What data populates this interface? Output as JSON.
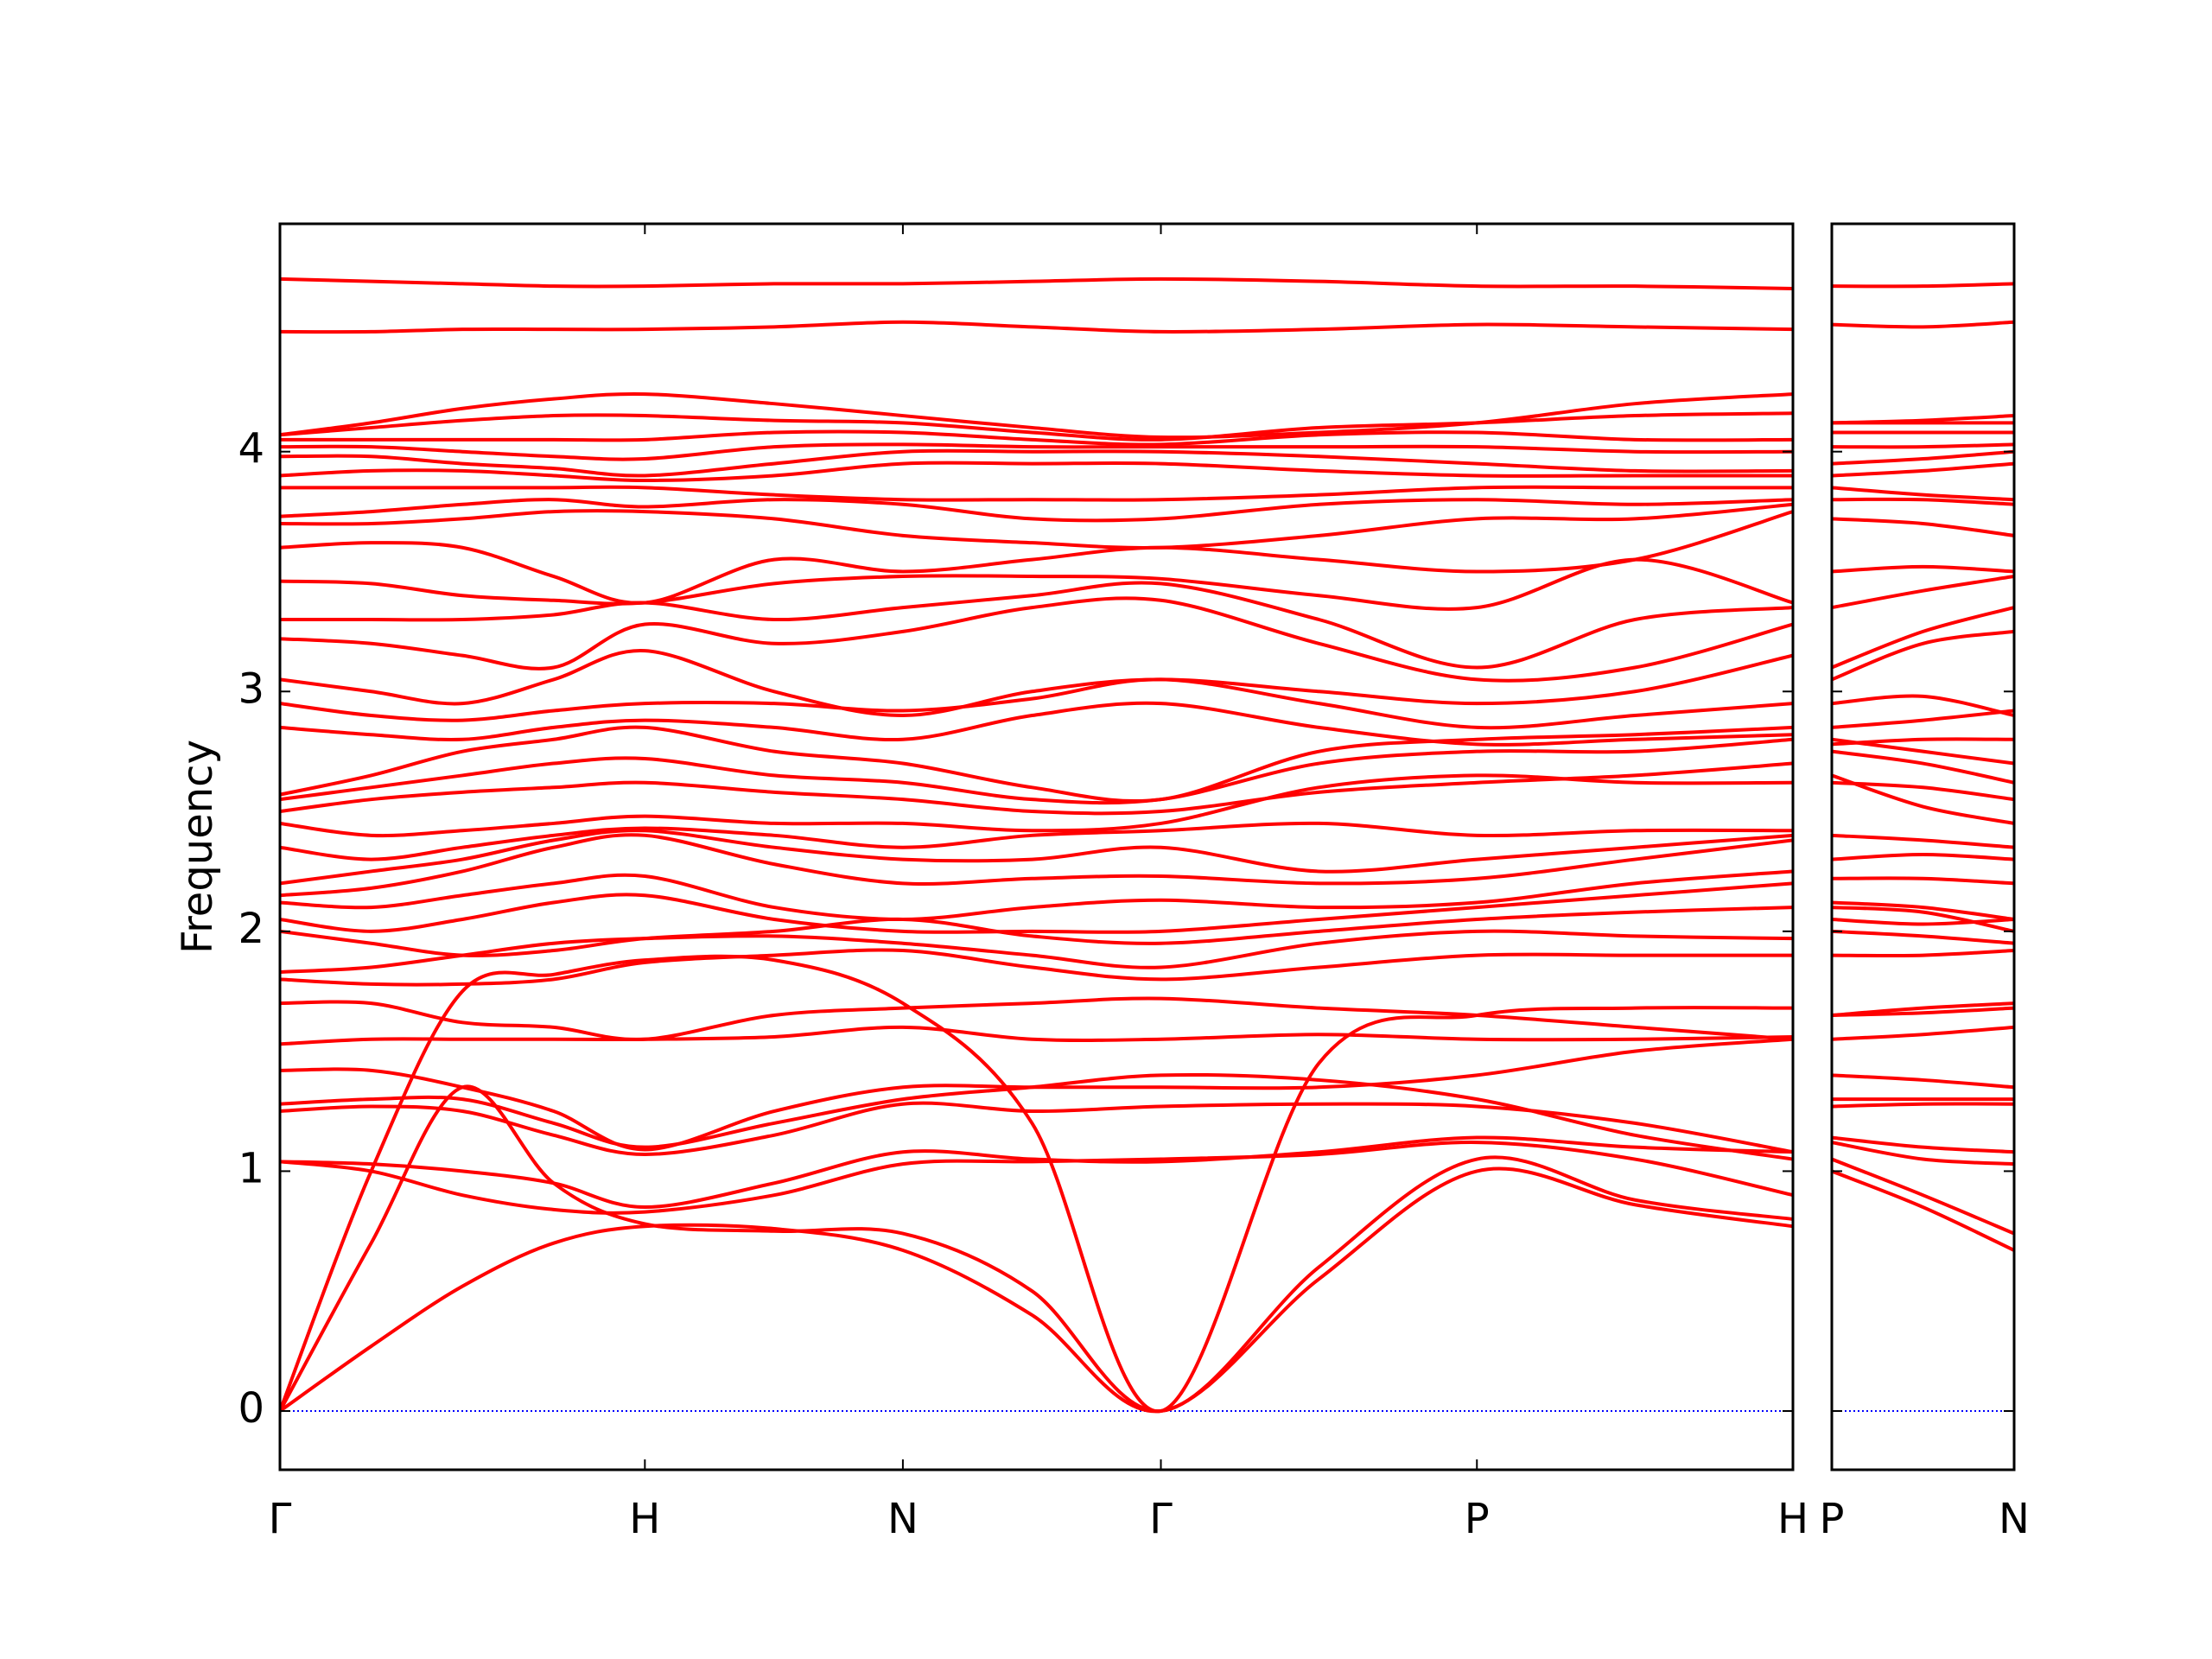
{
  "chart_data": [
    {
      "type": "line",
      "ylabel": "Frequency",
      "color": "#ff0000",
      "ylim": [
        -0.245,
        4.95
      ],
      "yticks": [
        0,
        1,
        2,
        3,
        4
      ],
      "xlim": [
        0,
        4.146
      ],
      "xticks": [
        {
          "value": 0,
          "label": "Γ"
        },
        {
          "value": 1,
          "label": "H"
        },
        {
          "value": 1.707,
          "label": "N"
        },
        {
          "value": 2.414,
          "label": "Γ"
        },
        {
          "value": 3.28,
          "label": "P"
        },
        {
          "value": 4.146,
          "label": "H"
        }
      ],
      "hlines": [
        0
      ],
      "hline_color": "#0000ff",
      "x": [
        0,
        0.25,
        0.5,
        0.75,
        1,
        1.354,
        1.707,
        2.061,
        2.414,
        2.847,
        3.28,
        3.713,
        4.146
      ],
      "series": [
        {
          "values": [
            0,
            0.27,
            0.52,
            0.7,
            0.77,
            0.76,
            0.67,
            0.4,
            0,
            0.55,
            1.0,
            0.86,
            0.77
          ]
        },
        {
          "values": [
            0,
            0.7,
            1.35,
            0.95,
            0.78,
            0.75,
            0.74,
            0.5,
            0,
            0.6,
            1.05,
            0.88,
            0.8
          ]
        },
        {
          "values": [
            0,
            1.0,
            1.75,
            1.82,
            1.88,
            1.88,
            1.7,
            1.2,
            0,
            1.45,
            1.65,
            1.68,
            1.68
          ]
        },
        {
          "values": [
            1.04,
            1.0,
            0.9,
            0.84,
            0.83,
            0.9,
            1.03,
            1.04,
            1.05,
            1.07,
            1.12,
            1.05,
            0.9
          ]
        },
        {
          "values": [
            1.04,
            1.03,
            1.0,
            0.95,
            0.85,
            0.95,
            1.08,
            1.05,
            1.04,
            1.08,
            1.14,
            1.1,
            1.08
          ]
        },
        {
          "values": [
            1.25,
            1.27,
            1.25,
            1.15,
            1.07,
            1.15,
            1.28,
            1.25,
            1.27,
            1.28,
            1.27,
            1.2,
            1.08
          ]
        },
        {
          "values": [
            1.28,
            1.3,
            1.3,
            1.2,
            1.1,
            1.2,
            1.3,
            1.35,
            1.4,
            1.38,
            1.3,
            1.15,
            1.05
          ]
        },
        {
          "values": [
            1.42,
            1.42,
            1.35,
            1.25,
            1.09,
            1.25,
            1.35,
            1.35,
            1.35,
            1.35,
            1.4,
            1.5,
            1.55
          ]
        },
        {
          "values": [
            1.53,
            1.55,
            1.55,
            1.55,
            1.55,
            1.56,
            1.6,
            1.55,
            1.55,
            1.57,
            1.55,
            1.55,
            1.56
          ]
        },
        {
          "values": [
            1.7,
            1.7,
            1.62,
            1.6,
            1.55,
            1.65,
            1.68,
            1.7,
            1.72,
            1.68,
            1.65,
            1.6,
            1.55
          ]
        },
        {
          "values": [
            1.8,
            1.78,
            1.78,
            1.8,
            1.87,
            1.9,
            1.92,
            1.85,
            1.8,
            1.85,
            1.9,
            1.9,
            1.9
          ]
        },
        {
          "values": [
            1.83,
            1.85,
            1.9,
            1.95,
            1.97,
            1.98,
            1.95,
            1.9,
            1.85,
            1.95,
            2.0,
            1.98,
            1.97
          ]
        },
        {
          "values": [
            2.0,
            1.95,
            1.9,
            1.92,
            1.97,
            2.0,
            2.05,
            1.98,
            1.95,
            2.0,
            2.05,
            2.08,
            2.1
          ]
        },
        {
          "values": [
            2.05,
            2.0,
            2.05,
            2.12,
            2.15,
            2.05,
            2.0,
            2.0,
            2.0,
            2.05,
            2.1,
            2.15,
            2.2
          ]
        },
        {
          "values": [
            2.12,
            2.1,
            2.15,
            2.2,
            2.23,
            2.1,
            2.05,
            2.1,
            2.13,
            2.1,
            2.12,
            2.2,
            2.25
          ]
        },
        {
          "values": [
            2.15,
            2.18,
            2.25,
            2.35,
            2.4,
            2.28,
            2.2,
            2.22,
            2.23,
            2.2,
            2.22,
            2.3,
            2.38
          ]
        },
        {
          "values": [
            2.2,
            2.25,
            2.3,
            2.38,
            2.42,
            2.35,
            2.3,
            2.3,
            2.35,
            2.25,
            2.3,
            2.35,
            2.4
          ]
        },
        {
          "values": [
            2.35,
            2.3,
            2.35,
            2.4,
            2.43,
            2.4,
            2.35,
            2.4,
            2.42,
            2.45,
            2.4,
            2.42,
            2.42
          ]
        },
        {
          "values": [
            2.45,
            2.4,
            2.42,
            2.45,
            2.48,
            2.45,
            2.45,
            2.42,
            2.45,
            2.6,
            2.65,
            2.62,
            2.62
          ]
        },
        {
          "values": [
            2.5,
            2.55,
            2.58,
            2.6,
            2.62,
            2.58,
            2.55,
            2.5,
            2.5,
            2.58,
            2.62,
            2.65,
            2.7
          ]
        },
        {
          "values": [
            2.55,
            2.6,
            2.65,
            2.7,
            2.72,
            2.65,
            2.62,
            2.55,
            2.55,
            2.7,
            2.75,
            2.75,
            2.8
          ]
        },
        {
          "values": [
            2.57,
            2.65,
            2.75,
            2.8,
            2.85,
            2.75,
            2.7,
            2.6,
            2.55,
            2.75,
            2.8,
            2.82,
            2.85
          ]
        },
        {
          "values": [
            2.85,
            2.82,
            2.8,
            2.85,
            2.88,
            2.85,
            2.8,
            2.9,
            2.95,
            2.85,
            2.78,
            2.8,
            2.82
          ]
        },
        {
          "values": [
            2.95,
            2.9,
            2.88,
            2.92,
            2.95,
            2.95,
            2.92,
            2.97,
            3.05,
            2.95,
            2.85,
            2.9,
            2.95
          ]
        },
        {
          "values": [
            3.05,
            3.0,
            2.95,
            3.05,
            3.17,
            3.0,
            2.9,
            3.0,
            3.05,
            3.0,
            2.95,
            3.0,
            3.15
          ]
        },
        {
          "values": [
            3.22,
            3.2,
            3.15,
            3.1,
            3.28,
            3.2,
            3.25,
            3.35,
            3.38,
            3.2,
            3.05,
            3.1,
            3.28
          ]
        },
        {
          "values": [
            3.3,
            3.3,
            3.3,
            3.32,
            3.37,
            3.3,
            3.35,
            3.4,
            3.45,
            3.3,
            3.1,
            3.3,
            3.35
          ]
        },
        {
          "values": [
            3.46,
            3.45,
            3.4,
            3.38,
            3.37,
            3.45,
            3.48,
            3.48,
            3.47,
            3.4,
            3.35,
            3.55,
            3.37
          ]
        },
        {
          "values": [
            3.6,
            3.62,
            3.6,
            3.48,
            3.37,
            3.55,
            3.5,
            3.55,
            3.6,
            3.55,
            3.5,
            3.55,
            3.75
          ]
        },
        {
          "values": [
            3.7,
            3.7,
            3.72,
            3.75,
            3.75,
            3.72,
            3.65,
            3.62,
            3.6,
            3.65,
            3.72,
            3.72,
            3.78
          ]
        },
        {
          "values": [
            3.73,
            3.75,
            3.78,
            3.8,
            3.77,
            3.8,
            3.78,
            3.72,
            3.72,
            3.78,
            3.8,
            3.78,
            3.8
          ]
        },
        {
          "values": [
            3.85,
            3.85,
            3.85,
            3.85,
            3.85,
            3.82,
            3.8,
            3.8,
            3.8,
            3.82,
            3.85,
            3.85,
            3.85
          ]
        },
        {
          "values": [
            3.9,
            3.92,
            3.92,
            3.9,
            3.88,
            3.9,
            3.95,
            3.95,
            3.95,
            3.92,
            3.9,
            3.9,
            3.9
          ]
        },
        {
          "values": [
            3.98,
            3.98,
            3.95,
            3.93,
            3.9,
            3.95,
            4.0,
            4.0,
            4.0,
            3.98,
            3.95,
            3.92,
            3.92
          ]
        },
        {
          "values": [
            4.02,
            4.02,
            4.0,
            3.98,
            3.97,
            4.02,
            4.03,
            4.02,
            4.02,
            4.02,
            4.02,
            4.0,
            4.0
          ]
        },
        {
          "values": [
            4.05,
            4.05,
            4.05,
            4.05,
            4.05,
            4.08,
            4.08,
            4.05,
            4.03,
            4.07,
            4.08,
            4.05,
            4.05
          ]
        },
        {
          "values": [
            4.07,
            4.1,
            4.13,
            4.15,
            4.15,
            4.13,
            4.12,
            4.08,
            4.05,
            4.1,
            4.12,
            4.15,
            4.16
          ]
        },
        {
          "values": [
            4.07,
            4.12,
            4.18,
            4.22,
            4.24,
            4.2,
            4.15,
            4.1,
            4.06,
            4.08,
            4.12,
            4.2,
            4.24
          ]
        },
        {
          "values": [
            4.5,
            4.5,
            4.51,
            4.51,
            4.51,
            4.52,
            4.54,
            4.52,
            4.5,
            4.51,
            4.53,
            4.52,
            4.51
          ]
        },
        {
          "values": [
            4.72,
            4.71,
            4.7,
            4.69,
            4.69,
            4.7,
            4.7,
            4.71,
            4.72,
            4.71,
            4.69,
            4.69,
            4.68
          ]
        }
      ]
    },
    {
      "type": "line",
      "color": "#ff0000",
      "ylim": [
        -0.245,
        4.95
      ],
      "yticks": [
        0,
        1,
        2,
        3,
        4
      ],
      "ytick_labels": false,
      "xlim": [
        0,
        0.5
      ],
      "xticks": [
        {
          "value": 0,
          "label": "P"
        },
        {
          "value": 0.5,
          "label": "N"
        }
      ],
      "hlines": [
        0
      ],
      "hline_color": "#0000ff",
      "x": [
        0,
        0.25,
        0.5
      ],
      "series": [
        {
          "values": [
            1.0,
            0.85,
            0.67
          ]
        },
        {
          "values": [
            1.05,
            0.9,
            0.74
          ]
        },
        {
          "values": [
            1.65,
            1.68,
            1.7
          ]
        },
        {
          "values": [
            1.12,
            1.05,
            1.03
          ]
        },
        {
          "values": [
            1.14,
            1.1,
            1.08
          ]
        },
        {
          "values": [
            1.27,
            1.28,
            1.28
          ]
        },
        {
          "values": [
            1.3,
            1.3,
            1.3
          ]
        },
        {
          "values": [
            1.4,
            1.38,
            1.35
          ]
        },
        {
          "values": [
            1.55,
            1.57,
            1.6
          ]
        },
        {
          "values": [
            1.65,
            1.66,
            1.68
          ]
        },
        {
          "values": [
            1.9,
            1.9,
            1.92
          ]
        },
        {
          "values": [
            2.0,
            1.98,
            1.95
          ]
        },
        {
          "values": [
            2.05,
            2.03,
            2.05
          ]
        },
        {
          "values": [
            2.1,
            2.08,
            2.0
          ]
        },
        {
          "values": [
            2.12,
            2.1,
            2.05
          ]
        },
        {
          "values": [
            2.22,
            2.22,
            2.2
          ]
        },
        {
          "values": [
            2.3,
            2.32,
            2.3
          ]
        },
        {
          "values": [
            2.4,
            2.38,
            2.35
          ]
        },
        {
          "values": [
            2.65,
            2.52,
            2.45
          ]
        },
        {
          "values": [
            2.62,
            2.6,
            2.55
          ]
        },
        {
          "values": [
            2.75,
            2.7,
            2.62
          ]
        },
        {
          "values": [
            2.8,
            2.75,
            2.7
          ]
        },
        {
          "values": [
            2.78,
            2.8,
            2.8
          ]
        },
        {
          "values": [
            2.85,
            2.88,
            2.92
          ]
        },
        {
          "values": [
            2.95,
            2.98,
            2.9
          ]
        },
        {
          "values": [
            3.05,
            3.2,
            3.25
          ]
        },
        {
          "values": [
            3.1,
            3.25,
            3.35
          ]
        },
        {
          "values": [
            3.35,
            3.42,
            3.48
          ]
        },
        {
          "values": [
            3.5,
            3.52,
            3.5
          ]
        },
        {
          "values": [
            3.72,
            3.7,
            3.65
          ]
        },
        {
          "values": [
            3.8,
            3.8,
            3.78
          ]
        },
        {
          "values": [
            3.85,
            3.82,
            3.8
          ]
        },
        {
          "values": [
            3.9,
            3.92,
            3.95
          ]
        },
        {
          "values": [
            3.95,
            3.97,
            4.0
          ]
        },
        {
          "values": [
            4.02,
            4.02,
            4.03
          ]
        },
        {
          "values": [
            4.08,
            4.08,
            4.08
          ]
        },
        {
          "values": [
            4.12,
            4.12,
            4.12
          ]
        },
        {
          "values": [
            4.12,
            4.13,
            4.15
          ]
        },
        {
          "values": [
            4.53,
            4.52,
            4.54
          ]
        },
        {
          "values": [
            4.69,
            4.69,
            4.7
          ]
        }
      ]
    }
  ]
}
